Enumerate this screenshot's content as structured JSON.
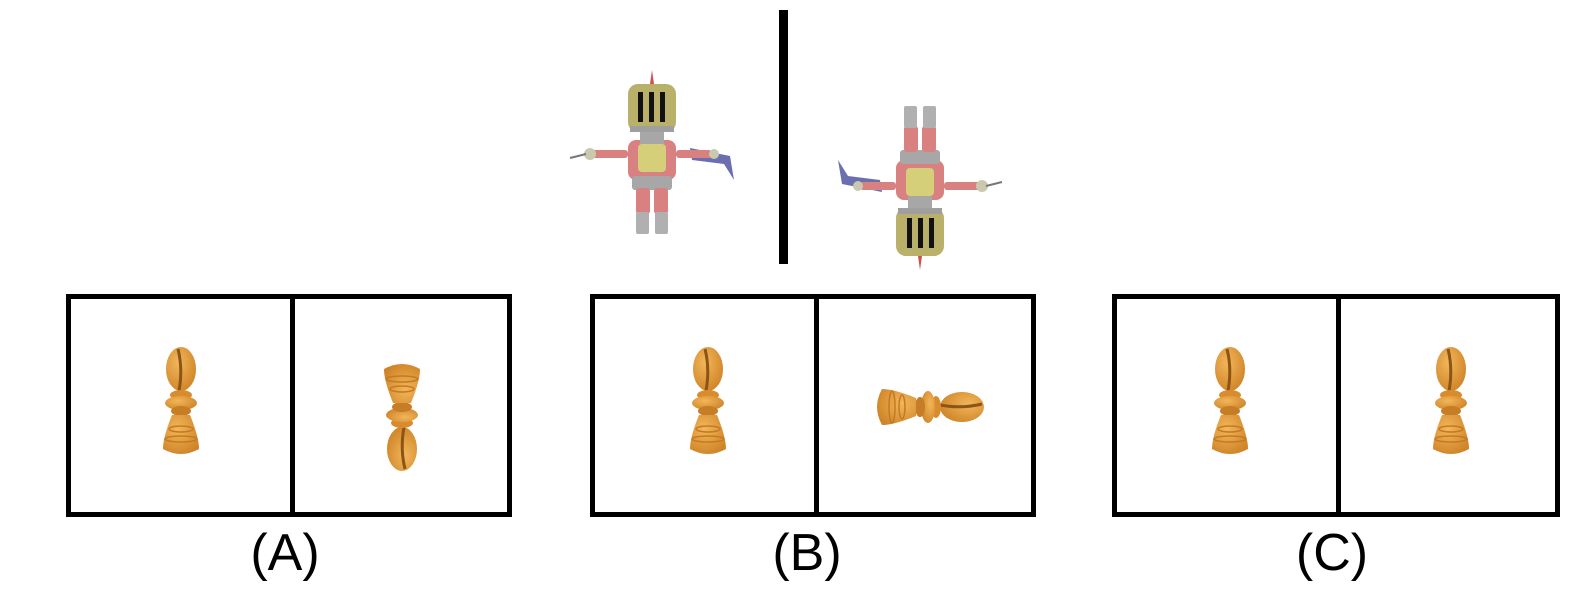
{
  "reference": {
    "left_figure": "knight-upright",
    "right_figure": "knight-rotated-180"
  },
  "options": [
    {
      "id": "A",
      "label": "(A)",
      "left": "pawn-upright",
      "right": "pawn-inverted"
    },
    {
      "id": "B",
      "label": "(B)",
      "left": "pawn-upright",
      "right": "pawn-horizontal"
    },
    {
      "id": "C",
      "label": "(C)",
      "left": "pawn-upright",
      "right": "pawn-upright"
    }
  ],
  "colors": {
    "pawn": "#e69a3a",
    "pawn_dark": "#c97e25",
    "knight_helmet": "#b9b06a",
    "knight_armor_red": "#d98080",
    "knight_armor_gray": "#a7a7a7",
    "knight_sword": "#6b6fb0"
  }
}
